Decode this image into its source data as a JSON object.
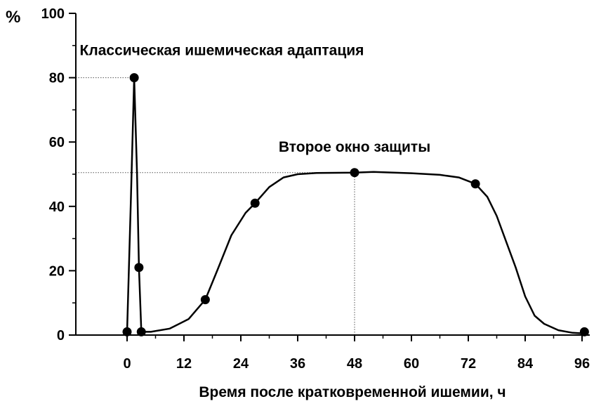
{
  "chart_data": {
    "type": "line",
    "y_unit": "%",
    "xlabel": "Время после кратковременной ишемии, ч",
    "ylabel": "",
    "xlim": [
      -3,
      98
    ],
    "ylim": [
      0,
      100
    ],
    "x_ticks": [
      0,
      12,
      24,
      36,
      48,
      60,
      72,
      84,
      96
    ],
    "x_tick_labels": [
      "0",
      "12",
      "24",
      "36",
      "48",
      "60",
      "72",
      "84",
      "96"
    ],
    "y_ticks": [
      0,
      20,
      40,
      60,
      80,
      100
    ],
    "y_tick_labels": [
      "0",
      "20",
      "40",
      "60",
      "80",
      "100"
    ],
    "grid": false,
    "annotations": [
      {
        "text": "Классическая ишемическая адаптация",
        "x": 20,
        "y": 87
      },
      {
        "text": "Второе окно защиты",
        "x": 48,
        "y": 57
      }
    ],
    "series": [
      {
        "markers": [
          {
            "x": 0,
            "y": 1
          },
          {
            "x": 1.5,
            "y": 80
          },
          {
            "x": 2.5,
            "y": 21
          },
          {
            "x": 3,
            "y": 1
          },
          {
            "x": 16.5,
            "y": 11
          },
          {
            "x": 27,
            "y": 41
          },
          {
            "x": 48,
            "y": 50.5
          },
          {
            "x": 73.5,
            "y": 47
          },
          {
            "x": 96.5,
            "y": 1
          }
        ],
        "curve": [
          [
            0,
            1
          ],
          [
            0.8,
            42
          ],
          [
            1.5,
            80
          ],
          [
            2.1,
            50
          ],
          [
            2.5,
            21
          ],
          [
            3,
            1
          ],
          [
            5,
            1
          ],
          [
            9,
            2
          ],
          [
            13,
            5
          ],
          [
            16.5,
            11
          ],
          [
            19,
            20
          ],
          [
            22,
            31
          ],
          [
            25,
            38
          ],
          [
            27,
            41
          ],
          [
            30,
            46
          ],
          [
            33,
            49
          ],
          [
            36,
            50
          ],
          [
            40,
            50.4
          ],
          [
            48,
            50.5
          ],
          [
            52,
            50.7
          ],
          [
            60,
            50.3
          ],
          [
            66,
            49.8
          ],
          [
            70,
            49
          ],
          [
            73.5,
            47
          ],
          [
            76,
            43
          ],
          [
            78,
            37
          ],
          [
            80,
            29
          ],
          [
            82,
            21
          ],
          [
            84,
            12
          ],
          [
            86,
            6
          ],
          [
            88,
            3.5
          ],
          [
            91,
            1.5
          ],
          [
            94,
            0.7
          ],
          [
            96.5,
            0.5
          ]
        ]
      }
    ],
    "reference_lines": [
      {
        "type": "horizontal",
        "y": 80,
        "x_from": -3,
        "x_to": 1.5
      },
      {
        "type": "horizontal",
        "y": 50.5,
        "x_from": -3,
        "x_to": 48
      },
      {
        "type": "vertical",
        "x": 48,
        "y_from": 0,
        "y_to": 50.5
      }
    ],
    "colors": {
      "line": "#000000",
      "marker": "#000000",
      "reference": "#555555"
    }
  }
}
